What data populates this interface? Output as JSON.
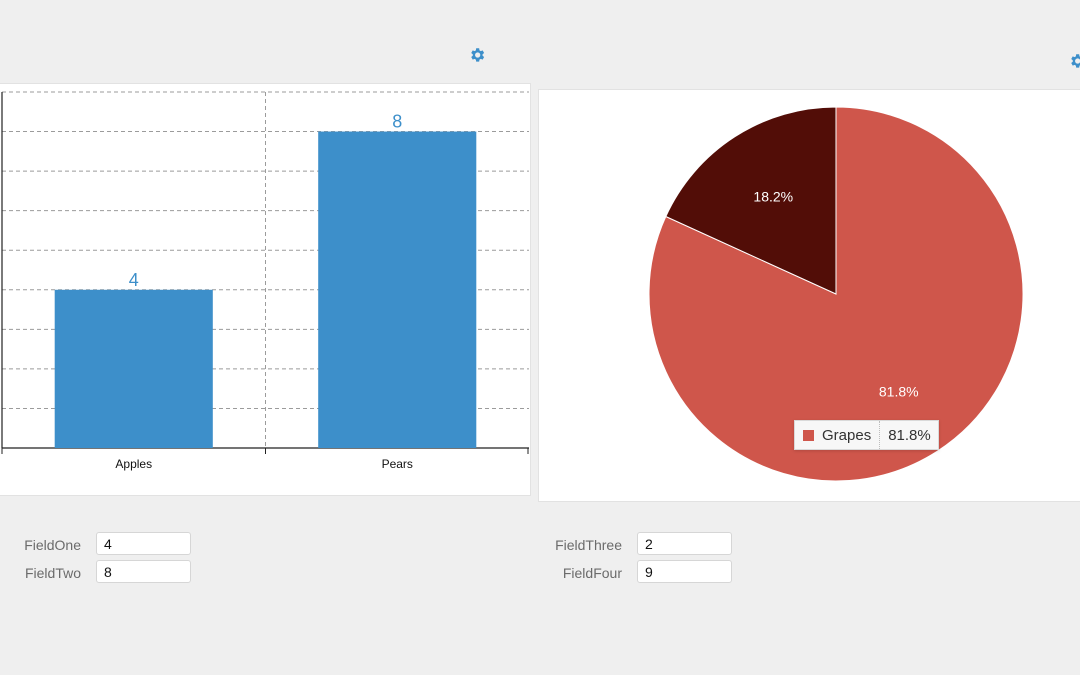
{
  "icons": {
    "settings_left": "gear-icon",
    "settings_right": "gear-icon"
  },
  "colors": {
    "bar": "#3d8fca",
    "pie_main": "#cf564b",
    "pie_second": "#520d07",
    "background": "#efefef"
  },
  "chart_data": [
    {
      "type": "bar",
      "categories": [
        "Apples",
        "Pears"
      ],
      "values": [
        4,
        8
      ],
      "ylim": [
        0,
        9
      ],
      "grid": true,
      "data_labels": [
        "4",
        "8"
      ]
    },
    {
      "type": "pie",
      "labels": [
        "Grapes",
        ""
      ],
      "values": [
        81.8,
        18.2
      ],
      "slice_labels": [
        "81.8%",
        "18.2%"
      ],
      "tooltip": {
        "label": "Grapes",
        "value": "81.8%"
      }
    }
  ],
  "form_left": {
    "field_one": {
      "label": "FieldOne",
      "value": "4"
    },
    "field_two": {
      "label": "FieldTwo",
      "value": "8"
    }
  },
  "form_right": {
    "field_three": {
      "label": "FieldThree",
      "value": "2"
    },
    "field_four": {
      "label": "FieldFour",
      "value": "9"
    }
  }
}
